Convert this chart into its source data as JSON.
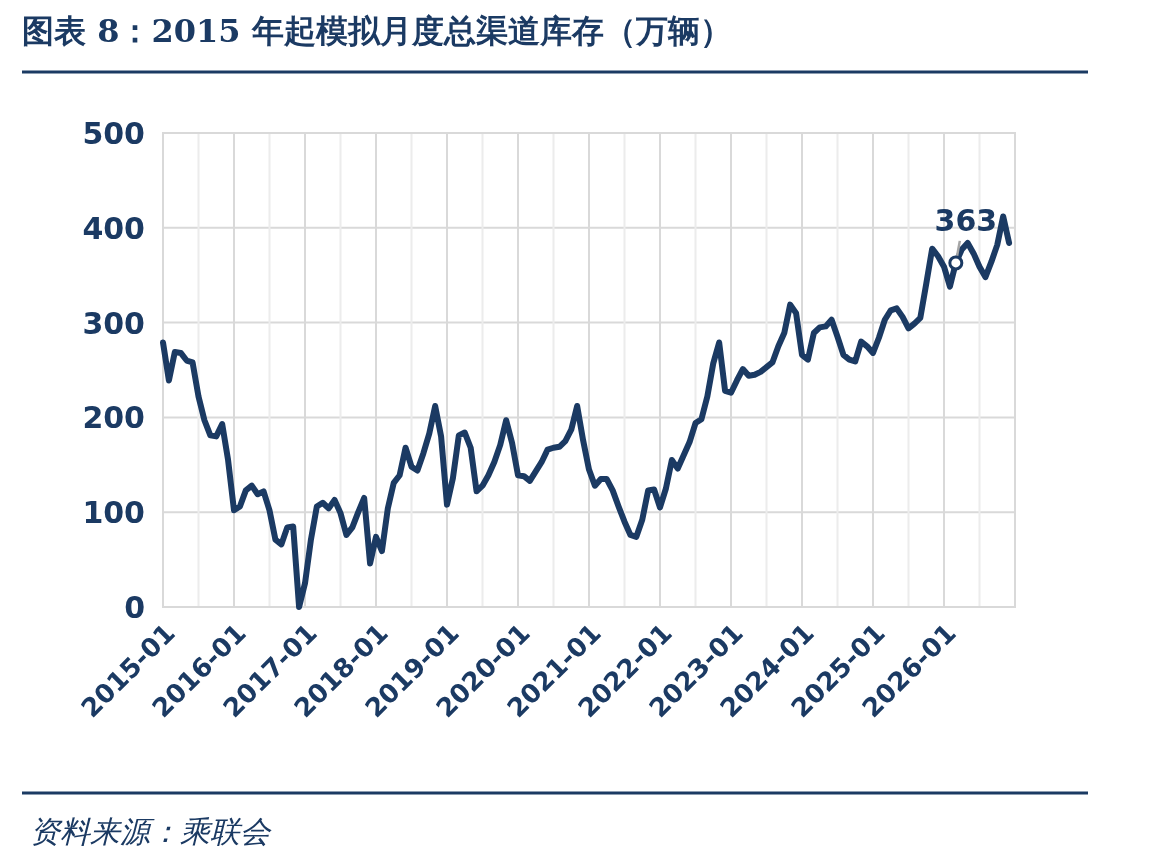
{
  "chart_data": {
    "type": "line",
    "title": "图表 8：2015 年起模拟月度总渠道库存（万辆）",
    "x": [
      "2015-01",
      "2015-02",
      "2015-03",
      "2015-04",
      "2015-05",
      "2015-06",
      "2015-07",
      "2015-08",
      "2015-09",
      "2015-10",
      "2015-11",
      "2015-12",
      "2016-01",
      "2016-02",
      "2016-03",
      "2016-04",
      "2016-05",
      "2016-06",
      "2016-07",
      "2016-08",
      "2016-09",
      "2016-10",
      "2016-11",
      "2016-12",
      "2017-01",
      "2017-02",
      "2017-03",
      "2017-04",
      "2017-05",
      "2017-06",
      "2017-07",
      "2017-08",
      "2017-09",
      "2017-10",
      "2017-11",
      "2017-12",
      "2018-01",
      "2018-02",
      "2018-03",
      "2018-04",
      "2018-05",
      "2018-06",
      "2018-07",
      "2018-08",
      "2018-09",
      "2018-10",
      "2018-11",
      "2018-12",
      "2019-01",
      "2019-02",
      "2019-03",
      "2019-04",
      "2019-05",
      "2019-06",
      "2019-07",
      "2019-08",
      "2019-09",
      "2019-10",
      "2019-11",
      "2019-12",
      "2020-01",
      "2020-02",
      "2020-03",
      "2020-04",
      "2020-05",
      "2020-06",
      "2020-07",
      "2020-08",
      "2020-09",
      "2020-10",
      "2020-11",
      "2020-12",
      "2021-01",
      "2021-02",
      "2021-03",
      "2021-04",
      "2021-05",
      "2021-06",
      "2021-07",
      "2021-08",
      "2021-09",
      "2021-10",
      "2021-11",
      "2021-12",
      "2022-01",
      "2022-02",
      "2022-03",
      "2022-04",
      "2022-05",
      "2022-06",
      "2022-07",
      "2022-08",
      "2022-09",
      "2022-10",
      "2022-11",
      "2022-12",
      "2023-01",
      "2023-02",
      "2023-03",
      "2023-04",
      "2023-05",
      "2023-06",
      "2023-07",
      "2023-08",
      "2023-09",
      "2023-10",
      "2023-11",
      "2023-12",
      "2024-01",
      "2024-02",
      "2024-03",
      "2024-04",
      "2024-05",
      "2024-06",
      "2024-07",
      "2024-08",
      "2024-09",
      "2024-10",
      "2024-11",
      "2024-12",
      "2025-01",
      "2025-02",
      "2025-03",
      "2025-04",
      "2025-05",
      "2025-06",
      "2025-07",
      "2025-08",
      "2025-09",
      "2025-10",
      "2025-11",
      "2025-12",
      "2026-01",
      "2026-02",
      "2026-03",
      "2026-04",
      "2026-05",
      "2026-06",
      "2026-07",
      "2026-08",
      "2026-09",
      "2026-10",
      "2026-11",
      "2026-12"
    ],
    "series": [
      {
        "color": "#1b3a63",
        "values": [
          279,
          239,
          269,
          268,
          260,
          258,
          222,
          197,
          181,
          180,
          193,
          155,
          102,
          106,
          123,
          128,
          119,
          122,
          102,
          71,
          66,
          84,
          85,
          0,
          25,
          71,
          106,
          110,
          104,
          113,
          99,
          76,
          84,
          100,
          115,
          46,
          74,
          59,
          104,
          131,
          139,
          168,
          148,
          144,
          162,
          183,
          212,
          180,
          108,
          136,
          181,
          184,
          168,
          122,
          128,
          139,
          153,
          171,
          197,
          173,
          139,
          138,
          133,
          143,
          153,
          166,
          168,
          169,
          175,
          187,
          212,
          176,
          145,
          128,
          135,
          135,
          123,
          106,
          90,
          76,
          74,
          92,
          123,
          124,
          105,
          125,
          155,
          146,
          160,
          174,
          194,
          198,
          222,
          257,
          279,
          228,
          226,
          239,
          251,
          244,
          245,
          248,
          253,
          258,
          275,
          289,
          319,
          310,
          266,
          261,
          289,
          295,
          296,
          303,
          285,
          266,
          261,
          259,
          280,
          275,
          268,
          284,
          303,
          313,
          315,
          306,
          294,
          299,
          305,
          341,
          378,
          370,
          359,
          338,
          363,
          377,
          384,
          373,
          359,
          348,
          364,
          382,
          412,
          384
        ]
      }
    ],
    "xlim": [
      "2015-01",
      "2027-01"
    ],
    "xticks": [
      {
        "value": "2015-01",
        "label": "2015-01"
      },
      {
        "value": "2015-07",
        "label": null
      },
      {
        "value": "2016-01",
        "label": "2016-01"
      },
      {
        "value": "2016-07",
        "label": null
      },
      {
        "value": "2017-01",
        "label": "2017-01"
      },
      {
        "value": "2017-07",
        "label": null
      },
      {
        "value": "2018-01",
        "label": "2018-01"
      },
      {
        "value": "2018-07",
        "label": null
      },
      {
        "value": "2019-01",
        "label": "2019-01"
      },
      {
        "value": "2019-07",
        "label": null
      },
      {
        "value": "2020-01",
        "label": "2020-01"
      },
      {
        "value": "2020-07",
        "label": null
      },
      {
        "value": "2021-01",
        "label": "2021-01"
      },
      {
        "value": "2021-07",
        "label": null
      },
      {
        "value": "2022-01",
        "label": "2022-01"
      },
      {
        "value": "2022-07",
        "label": null
      },
      {
        "value": "2023-01",
        "label": "2023-01"
      },
      {
        "value": "2023-07",
        "label": null
      },
      {
        "value": "2024-01",
        "label": "2024-01"
      },
      {
        "value": "2024-07",
        "label": null
      },
      {
        "value": "2025-01",
        "label": "2025-01"
      },
      {
        "value": "2025-07",
        "label": null
      },
      {
        "value": "2026-01",
        "label": "2026-01"
      },
      {
        "value": "2026-07",
        "label": null
      },
      {
        "value": "2027-01",
        "label": null
      }
    ],
    "ylim": [
      0,
      500
    ],
    "yticks": [
      0,
      100,
      200,
      300,
      400,
      500
    ],
    "grid": true,
    "line_style": "solid",
    "annotations": [
      {
        "text": "363",
        "x": "2026-03",
        "y": 363
      },
      "资料来源：乘联会"
    ]
  }
}
